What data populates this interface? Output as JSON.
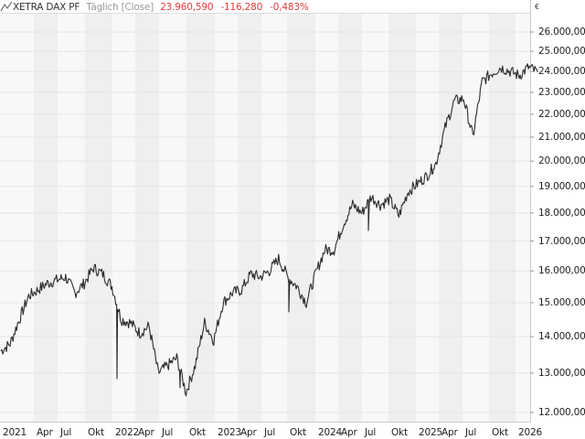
{
  "header": {
    "instrument": "XETRA DAX PF",
    "period": "Täglich [Close]",
    "last": "23.960,590",
    "change": "-116,280",
    "change_pct": "-0,483%",
    "icon": "line-chart-icon",
    "change_color": "#e03c3c"
  },
  "axis": {
    "currency": "€",
    "y_labels": [
      "26.000,000",
      "25.000,000",
      "24.000,000",
      "23.000,000",
      "22.000,000",
      "21.000,000",
      "20.000,000",
      "19.000,000",
      "18.000,000",
      "17.000,000",
      "16.000,000",
      "15.000,000",
      "14.000,000",
      "13.000,000",
      "12.000,000"
    ],
    "x_labels": [
      "2021",
      "Apr",
      "Jul",
      "Okt",
      "2022",
      "Apr",
      "Jul",
      "Okt",
      "2023",
      "Apr",
      "Jul",
      "Okt",
      "2024",
      "Apr",
      "Jul",
      "Okt",
      "2025",
      "Apr",
      "Jul",
      "Okt",
      "2026"
    ]
  },
  "chart_data": {
    "type": "line",
    "title": "XETRA DAX PF Täglich [Close]",
    "xlabel": "",
    "ylabel": "€",
    "yscale": "log",
    "ylim": [
      11800,
      26800
    ],
    "grid": true,
    "legend": "none",
    "line_color": "#2b2b2b",
    "series": [
      {
        "name": "XETRA DAX PF",
        "x": [
          "2021-01",
          "2021-02",
          "2021-03",
          "2021-04",
          "2021-05",
          "2021-06",
          "2021-07",
          "2021-08",
          "2021-09",
          "2021-10",
          "2021-11",
          "2021-12",
          "2022-01",
          "2022-02",
          "2022-03",
          "2022-04",
          "2022-05",
          "2022-06",
          "2022-07",
          "2022-08",
          "2022-09",
          "2022-10",
          "2022-11",
          "2022-12",
          "2023-01",
          "2023-02",
          "2023-03",
          "2023-04",
          "2023-05",
          "2023-06",
          "2023-07",
          "2023-08",
          "2023-09",
          "2023-10",
          "2023-11",
          "2023-12",
          "2024-01",
          "2024-02",
          "2024-03",
          "2024-04",
          "2024-05",
          "2024-06",
          "2024-07",
          "2024-08",
          "2024-09",
          "2024-10",
          "2024-11",
          "2024-12",
          "2025-01",
          "2025-02",
          "2025-03",
          "2025-04",
          "2025-05",
          "2025-06",
          "2025-07",
          "2025-08",
          "2025-09",
          "2025-10",
          "2025-11"
        ],
        "values": [
          13600,
          13800,
          14500,
          15200,
          15400,
          15600,
          15700,
          15800,
          15300,
          15600,
          16100,
          15900,
          15500,
          14500,
          14400,
          14100,
          14300,
          13000,
          13200,
          13400,
          12500,
          13200,
          14400,
          13900,
          15000,
          15300,
          15400,
          15900,
          15800,
          16000,
          16400,
          15800,
          15500,
          15000,
          15900,
          16700,
          16700,
          17600,
          18300,
          18000,
          18600,
          18300,
          18500,
          17900,
          18800,
          19100,
          19400,
          19900,
          21400,
          22600,
          22700,
          21000,
          23500,
          23900,
          24200,
          24000,
          23800,
          24200,
          23960
        ]
      }
    ]
  }
}
